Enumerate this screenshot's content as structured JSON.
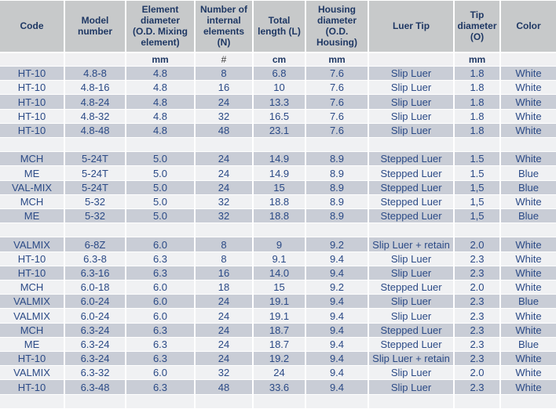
{
  "colors": {
    "header_background": "#c7c9ca",
    "row_dark": "#c9cdd6",
    "row_light": "#f0f1f3",
    "header_text": "#1f3864",
    "data_text": "#2b4a86",
    "grid_lines": "#ffffff"
  },
  "chart_data": {
    "type": "table",
    "title": "",
    "columns": [
      "Code",
      "Model number",
      "Element diameter (O.D. Mixing element)",
      "Number of internal elements (N)",
      "Total length (L)",
      "Housing diameter (O.D. Housing)",
      "Luer Tip",
      "Tip diameter (O)",
      "Color"
    ],
    "units": [
      "",
      "",
      "mm",
      "#",
      "cm",
      "mm",
      "",
      "mm",
      ""
    ],
    "rows": [
      [
        "HT-10",
        "4.8-8",
        "4.8",
        "8",
        "6.8",
        "7.6",
        "Slip Luer",
        "1.8",
        "White"
      ],
      [
        "HT-10",
        "4.8-16",
        "4.8",
        "16",
        "10",
        "7.6",
        "Slip Luer",
        "1.8",
        "White"
      ],
      [
        "HT-10",
        "4.8-24",
        "4.8",
        "24",
        "13.3",
        "7.6",
        "Slip Luer",
        "1.8",
        "White"
      ],
      [
        "HT-10",
        "4.8-32",
        "4.8",
        "32",
        "16.5",
        "7.6",
        "Slip Luer",
        "1.8",
        "White"
      ],
      [
        "HT-10",
        "4.8-48",
        "4.8",
        "48",
        "23.1",
        "7.6",
        "Slip Luer",
        "1.8",
        "White"
      ],
      [],
      [
        "MCH",
        "5-24T",
        "5.0",
        "24",
        "14.9",
        "8.9",
        "Stepped Luer",
        "1.5",
        "White"
      ],
      [
        "ME",
        "5-24T",
        "5.0",
        "24",
        "14.9",
        "8.9",
        "Stepped Luer",
        "1.5",
        "Blue"
      ],
      [
        "VAL-MIX",
        "5-24T",
        "5.0",
        "24",
        "15",
        "8.9",
        "Stepped Luer",
        "1,5",
        "Blue"
      ],
      [
        "MCH",
        "5-32",
        "5.0",
        "32",
        "18.8",
        "8.9",
        "Stepped Luer",
        "1,5",
        "White"
      ],
      [
        "ME",
        "5-32",
        "5.0",
        "32",
        "18.8",
        "8.9",
        "Stepped Luer",
        "1,5",
        "Blue"
      ],
      [],
      [
        "VALMIX",
        "6-8Z",
        "6.0",
        "8",
        "9",
        "9.2",
        "Slip Luer + retain",
        "2.0",
        "White"
      ],
      [
        "HT-10",
        "6.3-8",
        "6.3",
        "8",
        "9.1",
        "9.4",
        "Slip Luer",
        "2.3",
        "White"
      ],
      [
        "HT-10",
        "6.3-16",
        "6.3",
        "16",
        "14.0",
        "9.4",
        "Slip Luer",
        "2.3",
        "White"
      ],
      [
        "MCH",
        "6.0-18",
        "6.0",
        "18",
        "15",
        "9.2",
        "Stepped Luer",
        "2.0",
        "White"
      ],
      [
        "VALMIX",
        "6.0-24",
        "6.0",
        "24",
        "19.1",
        "9.4",
        "Slip Luer",
        "2.3",
        "Blue"
      ],
      [
        "VALMIX",
        "6.0-24",
        "6.0",
        "24",
        "19.1",
        "9.4",
        "Slip Luer",
        "2.3",
        "White"
      ],
      [
        "MCH",
        "6.3-24",
        "6.3",
        "24",
        "18.7",
        "9.4",
        "Stepped Luer",
        "2.3",
        "White"
      ],
      [
        "ME",
        "6.3-24",
        "6.3",
        "24",
        "18.7",
        "9.4",
        "Stepped Luer",
        "2.3",
        "Blue"
      ],
      [
        "HT-10",
        "6.3-24",
        "6.3",
        "24",
        "19.2",
        "9.4",
        "Slip Luer + retain",
        "2.3",
        "White"
      ],
      [
        "VALMIX",
        "6.3-32",
        "6.0",
        "32",
        "24",
        "9.4",
        "Slip Luer",
        "2.0",
        "White"
      ],
      [
        "HT-10",
        "6.3-48",
        "6.3",
        "48",
        "33.6",
        "9.4",
        "Slip Luer",
        "2.3",
        "White"
      ],
      []
    ]
  }
}
